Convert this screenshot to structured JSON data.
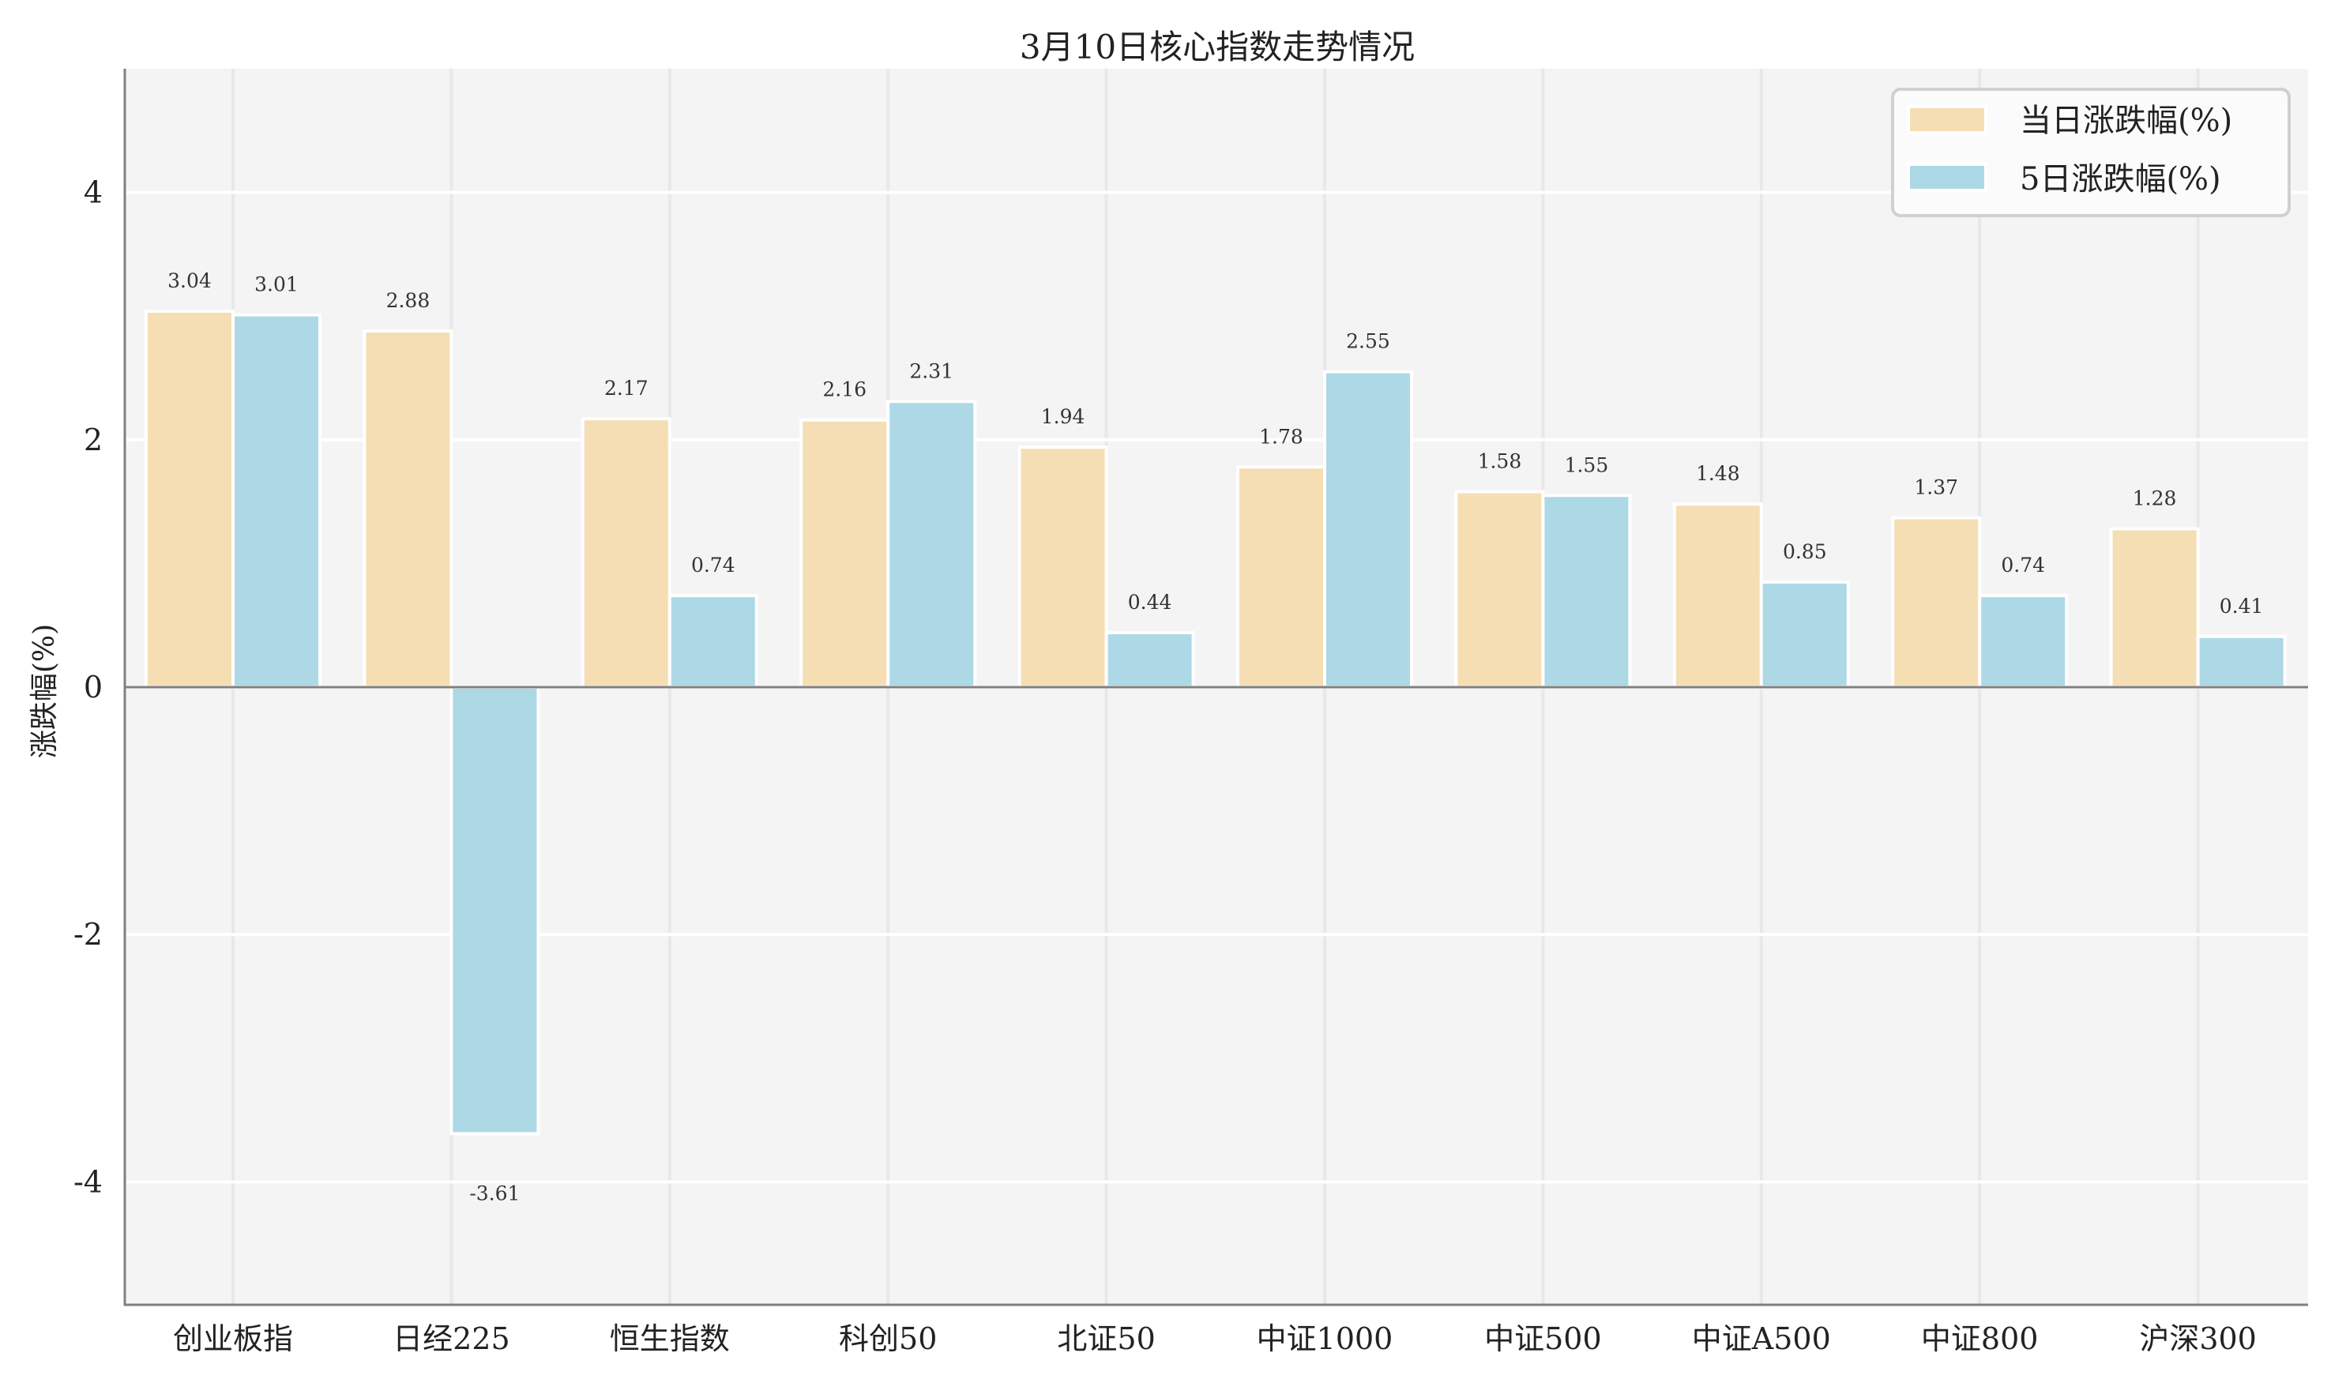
{
  "chart_data": {
    "type": "bar",
    "title": "3月10日核心指数走势情况",
    "xlabel": "",
    "ylabel": "涨跌幅(%)",
    "ylim": [
      -5,
      5
    ],
    "yticks": [
      -4,
      -2,
      0,
      2,
      4
    ],
    "grid": true,
    "legend_position": "upper right",
    "categories": [
      "创业板指",
      "日经225",
      "恒生指数",
      "科创50",
      "北证50",
      "中证1000",
      "中证500",
      "中证A500",
      "中证800",
      "沪深300"
    ],
    "series": [
      {
        "name": "当日涨跌幅(%)",
        "color": "#F5DEB3",
        "values": [
          3.04,
          2.88,
          2.17,
          2.16,
          1.94,
          1.78,
          1.58,
          1.48,
          1.37,
          1.28
        ]
      },
      {
        "name": "5日涨跌幅(%)",
        "color": "#ADD8E6",
        "values": [
          3.01,
          -3.61,
          0.74,
          2.31,
          0.44,
          2.55,
          1.55,
          0.85,
          0.74,
          0.41
        ]
      }
    ]
  },
  "colors": {
    "plot_background": "#F4F4F4",
    "grid_horizontal": "#FFFFFF",
    "grid_vertical": "#E8E8E8",
    "axis": "#808080",
    "bar_edge": "#FFFFFF"
  }
}
